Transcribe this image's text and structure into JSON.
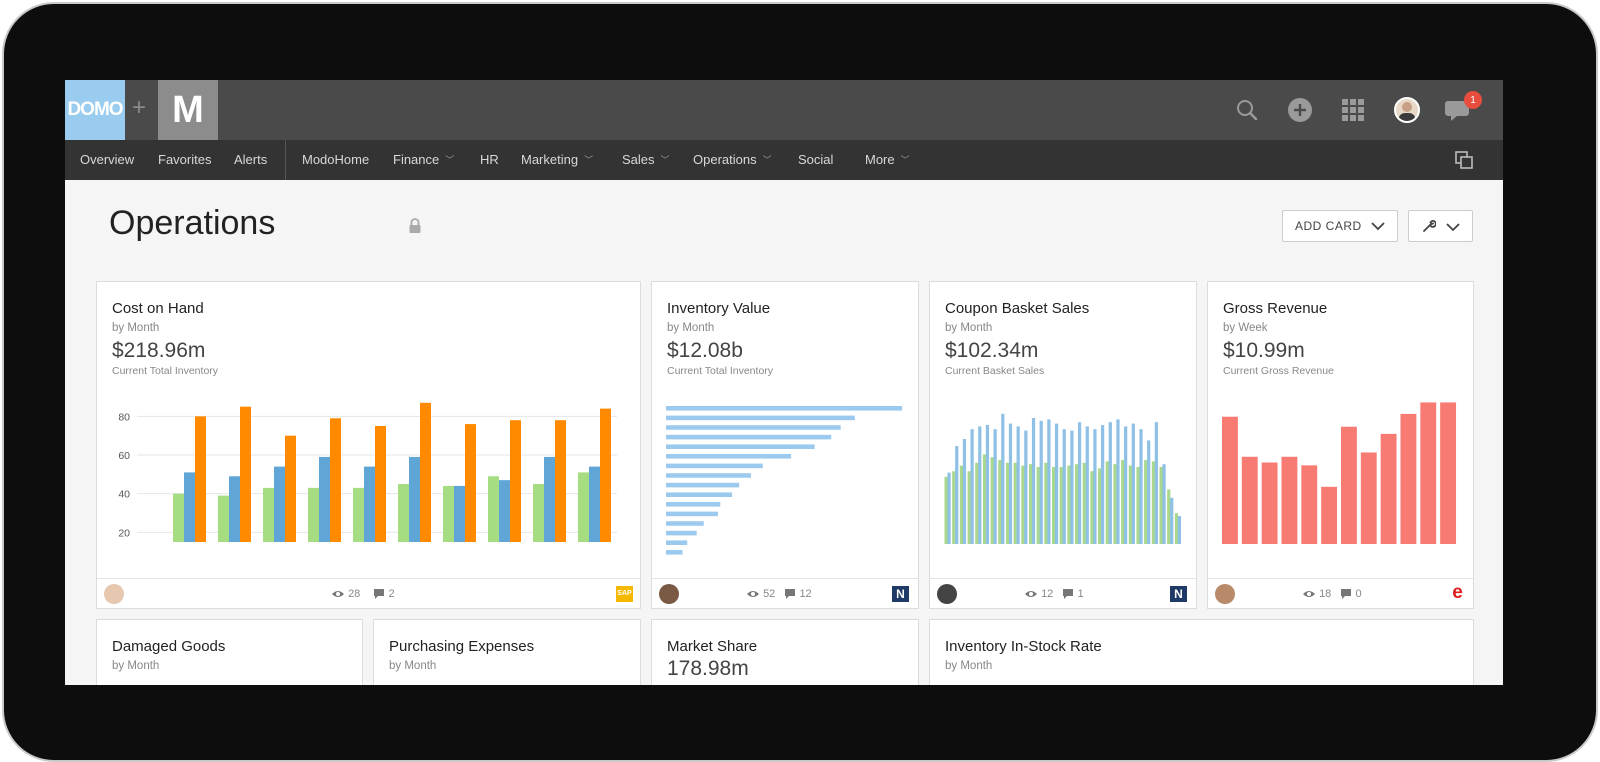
{
  "brand": {
    "domo_label": "DOMO",
    "plus": "+",
    "m_label": "M"
  },
  "topbar": {
    "notification_count": "1"
  },
  "nav": {
    "items": [
      {
        "label": "Overview",
        "chevron": false
      },
      {
        "label": "Favorites",
        "chevron": false
      },
      {
        "label": "Alerts",
        "chevron": false
      },
      {
        "label": "ModoHome",
        "chevron": false
      },
      {
        "label": "Finance",
        "chevron": true
      },
      {
        "label": "HR",
        "chevron": false
      },
      {
        "label": "Marketing",
        "chevron": true
      },
      {
        "label": "Sales",
        "chevron": true
      },
      {
        "label": "Operations",
        "chevron": true
      },
      {
        "label": "Social",
        "chevron": false
      },
      {
        "label": "More",
        "chevron": true
      }
    ]
  },
  "page": {
    "title": "Operations",
    "add_card_label": "ADD CARD"
  },
  "cards": [
    {
      "title": "Cost on Hand",
      "period": "by Month",
      "value": "$218.96m",
      "desc": "Current Total Inventory",
      "views": "28",
      "comments": "2",
      "source": "SAP"
    },
    {
      "title": "Inventory Value",
      "period": "by Month",
      "value": "$12.08b",
      "desc": "Current Total Inventory",
      "views": "52",
      "comments": "12",
      "source": "N"
    },
    {
      "title": "Coupon Basket Sales",
      "period": "by Month",
      "value": "$102.34m",
      "desc": "Current Basket Sales",
      "views": "12",
      "comments": "1",
      "source": "N"
    },
    {
      "title": "Gross Revenue",
      "period": "by Week",
      "value": "$10.99m",
      "desc": "Current Gross Revenue",
      "views": "18",
      "comments": "0",
      "source": "e"
    },
    {
      "title": "Damaged Goods",
      "period": "by Month"
    },
    {
      "title": "Purchasing Expenses",
      "period": "by Month"
    },
    {
      "title": "Market Share",
      "value": "178.98m"
    },
    {
      "title": "Inventory In-Stock Rate",
      "period": "by Month"
    }
  ],
  "chart_data": [
    {
      "type": "bar",
      "title": "Cost on Hand",
      "ylim": [
        15,
        90
      ],
      "yticks": [
        "20",
        "40",
        "60",
        "80"
      ],
      "colors": [
        "#a6dd83",
        "#5fa6d6",
        "#ff8a00"
      ],
      "series": [
        {
          "name": "s1",
          "values": [
            40,
            39,
            43,
            43,
            43,
            45,
            44,
            49,
            45,
            51
          ]
        },
        {
          "name": "s2",
          "values": [
            51,
            49,
            54,
            59,
            54,
            59,
            44,
            47,
            59,
            54
          ]
        },
        {
          "name": "s3",
          "values": [
            80,
            85,
            70,
            79,
            75,
            87,
            76,
            78,
            78,
            84
          ]
        }
      ]
    },
    {
      "type": "bar",
      "orientation": "horizontal",
      "title": "Inventory Value",
      "color": "#9ccaee",
      "values": [
        100,
        80,
        74,
        70,
        63,
        53,
        41,
        36,
        31,
        28,
        23,
        22,
        16,
        13,
        9,
        7,
        6,
        5
      ]
    },
    {
      "type": "bar",
      "title": "Coupon Basket Sales",
      "colors": [
        "#a9d88d",
        "#8ec1e5"
      ],
      "series": [
        {
          "name": "green",
          "values": [
            48,
            52,
            56,
            52,
            58,
            64,
            62,
            60,
            58,
            58,
            56,
            57,
            55,
            58,
            55,
            55,
            56,
            57,
            58,
            52,
            54,
            59,
            57,
            60,
            56,
            55,
            60,
            59,
            55,
            39,
            22
          ]
        },
        {
          "name": "blue",
          "values": [
            51,
            70,
            75,
            82,
            84,
            85,
            82,
            93,
            86,
            84,
            81,
            90,
            88,
            89,
            86,
            82,
            81,
            87,
            84,
            82,
            85,
            87,
            89,
            84,
            86,
            82,
            74,
            87,
            57,
            33,
            20
          ]
        }
      ]
    },
    {
      "type": "bar",
      "title": "Gross Revenue",
      "color": "#f77a73",
      "values": [
        89,
        61,
        57,
        61,
        55,
        40,
        82,
        64,
        77,
        91,
        99,
        99
      ]
    }
  ]
}
